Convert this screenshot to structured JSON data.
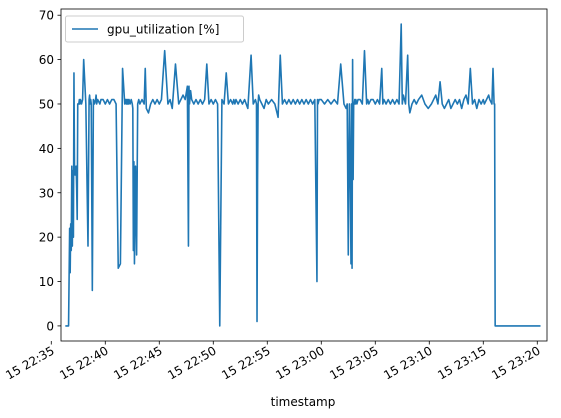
{
  "chart_data": {
    "type": "line",
    "title": "",
    "xlabel": "timestamp",
    "ylabel": "",
    "x_unit": "minutes since 22:30 on the 15th (axis displays '15 HH:MM')",
    "xlim": [
      5.9,
      50.9
    ],
    "ylim": [
      -3.4,
      71.4
    ],
    "x_ticks": [
      5,
      10,
      15,
      20,
      25,
      30,
      35,
      40,
      45,
      50
    ],
    "x_tick_labels": [
      "15 22:35",
      "15 22:40",
      "15 22:45",
      "15 22:50",
      "15 22:55",
      "15 23:00",
      "15 23:05",
      "15 23:10",
      "15 23:15",
      "15 23:20"
    ],
    "y_ticks": [
      0,
      10,
      20,
      30,
      40,
      50,
      60,
      70
    ],
    "y_tick_labels": [
      "0",
      "10",
      "20",
      "30",
      "40",
      "50",
      "60",
      "70"
    ],
    "grid": false,
    "legend": {
      "position": "top-left",
      "entries": [
        "gpu_utilization [%]"
      ]
    },
    "colors": {
      "series": "#1f77b4",
      "axes": "#000000",
      "background": "#ffffff"
    },
    "series": [
      {
        "name": "gpu_utilization [%]",
        "x": [
          6.3,
          6.6,
          6.7,
          6.75,
          6.8,
          6.85,
          6.9,
          6.95,
          7.0,
          7.05,
          7.1,
          7.15,
          7.2,
          7.25,
          7.3,
          7.35,
          7.4,
          7.45,
          7.5,
          7.55,
          7.6,
          7.65,
          7.7,
          7.8,
          7.9,
          8.0,
          8.2,
          8.4,
          8.5,
          8.55,
          8.6,
          8.65,
          8.7,
          8.8,
          8.9,
          9.0,
          9.1,
          9.15,
          9.2,
          9.3,
          9.5,
          9.6,
          9.8,
          10.0,
          10.2,
          10.4,
          10.6,
          10.8,
          11.0,
          11.2,
          11.4,
          11.6,
          11.8,
          11.85,
          11.9,
          11.95,
          12.0,
          12.05,
          12.1,
          12.15,
          12.2,
          12.3,
          12.4,
          12.5,
          12.55,
          12.6,
          12.65,
          12.7,
          12.8,
          12.9,
          13.0,
          13.1,
          13.2,
          13.4,
          13.6,
          13.7,
          13.8,
          14.0,
          14.2,
          14.4,
          14.6,
          14.8,
          15.0,
          15.2,
          15.5,
          15.8,
          16.0,
          16.2,
          16.5,
          16.8,
          17.0,
          17.2,
          17.4,
          17.6,
          17.7,
          17.75,
          17.8,
          17.9,
          18.0,
          18.2,
          18.4,
          18.6,
          18.8,
          19.0,
          19.2,
          19.4,
          19.6,
          19.8,
          20.0,
          20.2,
          20.4,
          20.6,
          20.8,
          21.0,
          21.2,
          21.4,
          21.6,
          21.8,
          21.9,
          22.0,
          22.1,
          22.3,
          22.5,
          22.7,
          22.9,
          23.2,
          23.5,
          23.7,
          23.9,
          24.0,
          24.05,
          24.1,
          24.15,
          24.2,
          24.3,
          24.5,
          24.7,
          24.9,
          25.1,
          25.4,
          25.7,
          25.8,
          25.9,
          26.0,
          26.2,
          26.4,
          26.6,
          26.8,
          27.0,
          27.2,
          27.4,
          27.6,
          27.8,
          28.0,
          28.2,
          28.4,
          28.6,
          28.8,
          29.0,
          29.2,
          29.4,
          29.6,
          29.65,
          29.7,
          29.8,
          30.0,
          30.3,
          30.6,
          30.9,
          31.2,
          31.5,
          31.8,
          32.1,
          32.3,
          32.4,
          32.5,
          32.6,
          32.7,
          32.75,
          32.8,
          32.85,
          32.9,
          32.95,
          33.0,
          33.05,
          33.1,
          33.15,
          33.2,
          33.3,
          33.4,
          33.6,
          33.8,
          34.0,
          34.2,
          34.3,
          34.4,
          34.6,
          34.8,
          35.0,
          35.2,
          35.4,
          35.6,
          35.7,
          35.8,
          36.0,
          36.2,
          36.4,
          36.6,
          36.8,
          37.0,
          37.2,
          37.4,
          37.5,
          37.6,
          37.8,
          38.0,
          38.1,
          38.2,
          38.4,
          38.6,
          38.8,
          39.0,
          39.3,
          39.6,
          39.9,
          40.2,
          40.4,
          40.6,
          40.8,
          41.0,
          41.2,
          41.4,
          41.6,
          41.8,
          42.0,
          42.2,
          42.4,
          42.6,
          42.8,
          43.0,
          43.2,
          43.4,
          43.6,
          43.8,
          44.0,
          44.2,
          44.4,
          44.6,
          44.8,
          45.0,
          45.1,
          45.3,
          45.5,
          45.6,
          45.8,
          45.9,
          46.0,
          46.05,
          46.1,
          48.0,
          50.3
        ],
        "y": [
          0,
          0,
          22,
          12,
          23,
          17,
          36,
          18,
          35,
          20,
          57,
          36,
          34,
          35,
          36,
          31,
          24,
          50,
          50,
          50,
          51,
          50,
          51,
          50,
          51,
          60,
          50,
          18,
          51,
          52,
          50,
          51,
          50,
          8,
          51,
          50,
          51,
          52,
          50,
          51,
          50,
          51,
          51,
          50,
          51,
          50,
          51,
          51,
          50,
          13,
          14,
          58,
          50,
          51,
          51,
          50,
          51,
          50,
          51,
          50,
          51,
          50,
          51,
          50,
          49,
          17,
          37,
          14,
          36,
          16,
          50,
          51,
          50,
          51,
          50,
          58,
          49,
          48,
          50,
          51,
          50,
          51,
          50,
          51,
          62,
          50,
          51,
          49,
          59,
          50,
          51,
          52,
          51,
          54,
          18,
          54,
          50,
          53,
          51,
          50,
          51,
          50,
          51,
          50,
          51,
          59,
          50,
          51,
          50,
          51,
          50,
          0,
          51,
          50,
          57,
          50,
          51,
          50,
          51,
          50,
          51,
          50,
          51,
          50,
          51,
          49,
          61,
          50,
          51,
          50,
          1,
          33,
          50,
          52,
          51,
          50,
          49,
          51,
          50,
          51,
          50,
          49,
          48,
          47,
          61,
          50,
          51,
          50,
          51,
          50,
          51,
          50,
          51,
          50,
          51,
          50,
          51,
          50,
          51,
          50,
          51,
          10,
          51,
          50,
          51,
          51,
          50,
          51,
          50,
          51,
          50,
          59,
          50,
          49,
          50,
          16,
          50,
          30,
          14,
          50,
          13,
          60,
          33,
          50,
          50,
          51,
          50,
          51,
          50,
          51,
          51,
          50,
          62,
          50,
          51,
          50,
          51,
          51,
          50,
          51,
          50,
          58,
          50,
          51,
          50,
          51,
          50,
          51,
          50,
          51,
          50,
          68,
          50,
          52,
          50,
          61,
          50,
          48,
          50,
          51,
          50,
          51,
          52,
          50,
          49,
          50,
          51,
          52,
          50,
          55,
          50,
          49,
          50,
          51,
          49,
          50,
          51,
          50,
          51,
          49,
          51,
          52,
          50,
          58,
          50,
          51,
          49,
          51,
          50,
          51,
          50,
          51,
          52,
          51,
          50,
          58,
          50,
          50,
          0,
          0,
          0
        ]
      }
    ]
  }
}
